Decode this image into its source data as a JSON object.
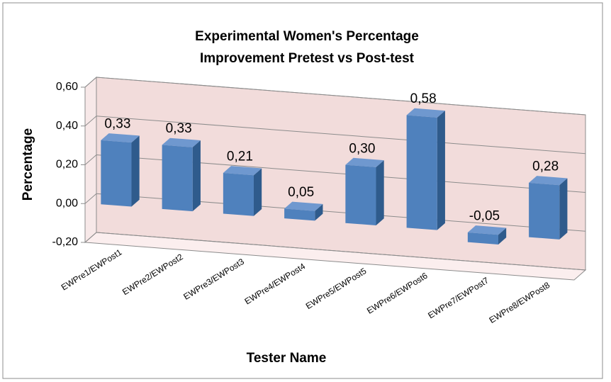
{
  "chart_data": {
    "type": "bar3d",
    "title": "Experimental Women's Percentage",
    "subtitle": "Improvement Pretest vs Post-test",
    "x_label": "Tester Name",
    "y_label": "Percentage",
    "categories": [
      "EWPre1/EWPost1",
      "EWPre2/EWPost2",
      "EWPre3/EWPost3",
      "EWPre4/EWPost4",
      "EWPre5/EWPost5",
      "EWPre6/EWPost6",
      "EWPre7/EWPost7",
      "EWPre8/EWPost8"
    ],
    "values": [
      0.33,
      0.33,
      0.21,
      0.05,
      0.3,
      0.58,
      -0.05,
      0.28
    ],
    "value_labels": [
      "0,33",
      "0,33",
      "0,21",
      "0,05",
      "0,30",
      "0,58",
      "-0,05",
      "0,28"
    ],
    "color": "#4f81bd",
    "ylim": [
      -0.2,
      0.6
    ],
    "yticks": [
      {
        "value": -0.2,
        "label": "-0,20"
      },
      {
        "value": 0,
        "label": "0,00"
      },
      {
        "value": 0.2,
        "label": "0,20"
      },
      {
        "value": 0.4,
        "label": "0,40"
      },
      {
        "value": 0.6,
        "label": "0,60"
      }
    ],
    "grid": true
  }
}
